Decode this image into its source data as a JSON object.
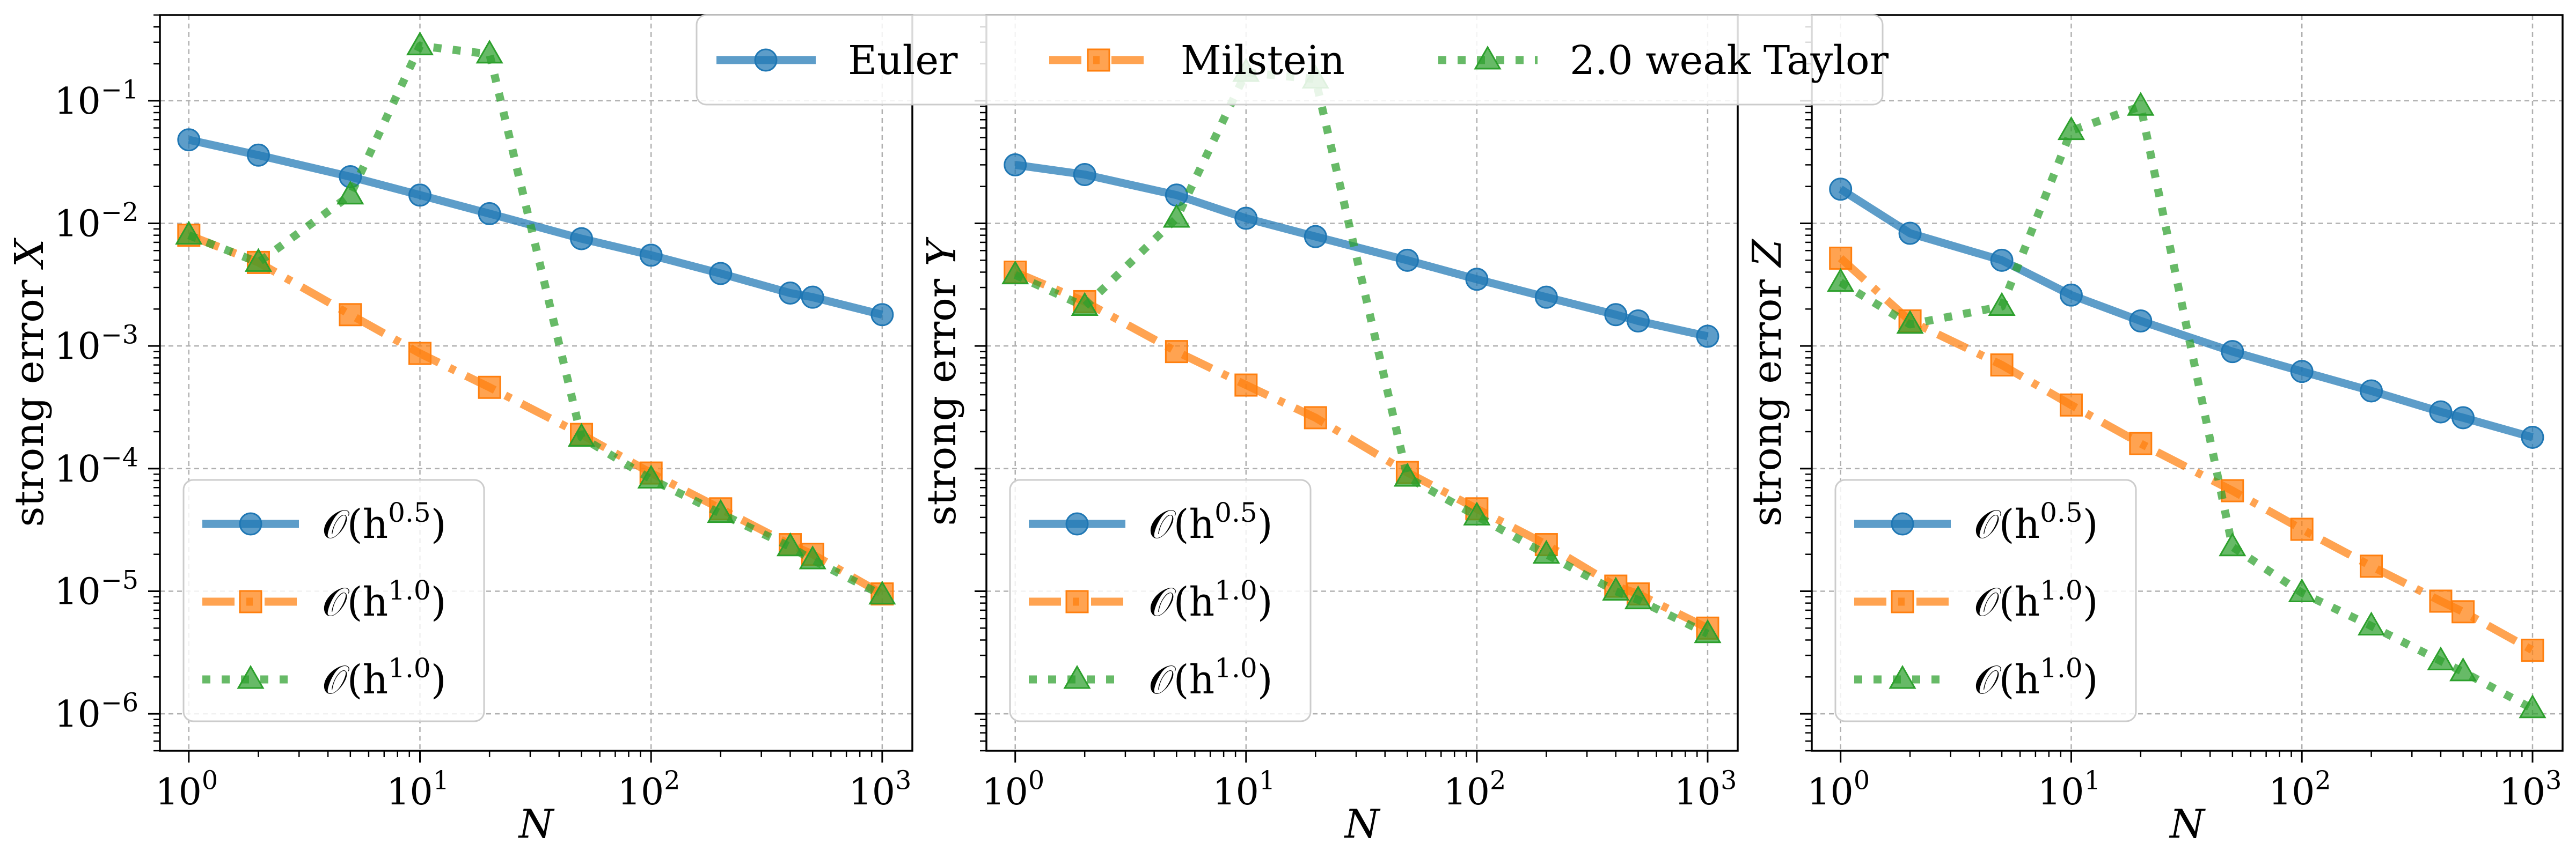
{
  "figure": {
    "legend_top": [
      {
        "label": "Euler",
        "color": "#1f77b4",
        "marker": "circle",
        "dash": "solid"
      },
      {
        "label": "Milstein",
        "color": "#ff7f0e",
        "marker": "square",
        "dash": "dashdot"
      },
      {
        "label": "2.0 weak Taylor",
        "color": "#2ca02c",
        "marker": "triangle",
        "dash": "dotted"
      }
    ]
  },
  "chart_data": [
    {
      "type": "line",
      "xscale": "log",
      "yscale": "log",
      "xlabel": "N",
      "ylabel_text": "strong error ",
      "ylabel_var": "X",
      "xlim": [
        0.75,
        1350
      ],
      "ylim": [
        5e-07,
        0.5
      ],
      "grid": true,
      "show_yticklabels": true,
      "legend_position": "lower-left",
      "x": [
        1,
        2,
        5,
        10,
        20,
        50,
        100,
        200,
        400,
        500,
        1000
      ],
      "x_ticks": [
        {
          "base": "10",
          "exp": "0"
        },
        {
          "base": "10",
          "exp": "1"
        },
        {
          "base": "10",
          "exp": "2"
        },
        {
          "base": "10",
          "exp": "3"
        }
      ],
      "y_ticks": [
        {
          "base": "10",
          "exp": "−1"
        },
        {
          "base": "10",
          "exp": "−2"
        },
        {
          "base": "10",
          "exp": "−3"
        },
        {
          "base": "10",
          "exp": "−4"
        },
        {
          "base": "10",
          "exp": "−5"
        },
        {
          "base": "10",
          "exp": "−6"
        }
      ],
      "series": [
        {
          "values": [
            0.048,
            0.036,
            0.024,
            0.017,
            0.012,
            0.0075,
            0.0055,
            0.0039,
            0.0027,
            0.0025,
            0.0018
          ],
          "legend": {
            "pre": "𝒪(h",
            "sup": "0.5",
            "post": ")"
          }
        },
        {
          "values": [
            0.008,
            0.0048,
            0.0018,
            0.00087,
            0.00046,
            0.00019,
            9.2e-05,
            4.7e-05,
            2.4e-05,
            2e-05,
            9.5e-06
          ],
          "legend": {
            "pre": "𝒪(h",
            "sup": "1.0",
            "post": ")"
          }
        },
        {
          "values": [
            0.008,
            0.0048,
            0.017,
            0.28,
            0.24,
            0.00018,
            8.2e-05,
            4.3e-05,
            2.3e-05,
            1.8e-05,
            9.3e-06
          ],
          "legend": {
            "pre": "𝒪(h",
            "sup": "1.0",
            "post": ")"
          }
        }
      ]
    },
    {
      "type": "line",
      "xscale": "log",
      "yscale": "log",
      "xlabel": "N",
      "ylabel_text": "strong error ",
      "ylabel_var": "Y",
      "xlim": [
        0.75,
        1350
      ],
      "ylim": [
        5e-07,
        0.5
      ],
      "grid": true,
      "show_yticklabels": false,
      "legend_position": "lower-left",
      "x": [
        1,
        2,
        5,
        10,
        20,
        50,
        100,
        200,
        400,
        500,
        1000
      ],
      "x_ticks": [
        {
          "base": "10",
          "exp": "0"
        },
        {
          "base": "10",
          "exp": "1"
        },
        {
          "base": "10",
          "exp": "2"
        },
        {
          "base": "10",
          "exp": "3"
        }
      ],
      "y_ticks": [],
      "series": [
        {
          "values": [
            0.03,
            0.025,
            0.017,
            0.011,
            0.0078,
            0.005,
            0.0035,
            0.0025,
            0.0018,
            0.0016,
            0.0012
          ],
          "legend": {
            "pre": "𝒪(h",
            "sup": "0.5",
            "post": ")"
          }
        },
        {
          "values": [
            0.004,
            0.0023,
            0.0009,
            0.00048,
            0.00026,
            9.3e-05,
            4.7e-05,
            2.4e-05,
            1.1e-05,
            9.5e-06,
            5e-06
          ],
          "legend": {
            "pre": "𝒪(h",
            "sup": "1.0",
            "post": ")"
          }
        },
        {
          "values": [
            0.0038,
            0.0021,
            0.011,
            0.17,
            0.15,
            8.5e-05,
            4.1e-05,
            2e-05,
            1e-05,
            8.5e-06,
            4.5e-06
          ],
          "legend": {
            "pre": "𝒪(h",
            "sup": "1.0",
            "post": ")"
          }
        }
      ]
    },
    {
      "type": "line",
      "xscale": "log",
      "yscale": "log",
      "xlabel": "N",
      "ylabel_text": "strong error ",
      "ylabel_var": "Z",
      "xlim": [
        0.75,
        1350
      ],
      "ylim": [
        5e-07,
        0.5
      ],
      "grid": true,
      "show_yticklabels": false,
      "legend_position": "lower-left",
      "x": [
        1,
        2,
        5,
        10,
        20,
        50,
        100,
        200,
        400,
        500,
        1000
      ],
      "x_ticks": [
        {
          "base": "10",
          "exp": "0"
        },
        {
          "base": "10",
          "exp": "1"
        },
        {
          "base": "10",
          "exp": "2"
        },
        {
          "base": "10",
          "exp": "3"
        }
      ],
      "y_ticks": [],
      "series": [
        {
          "values": [
            0.019,
            0.0083,
            0.005,
            0.0026,
            0.0016,
            0.0009,
            0.00062,
            0.00043,
            0.00029,
            0.00026,
            0.00018
          ],
          "legend": {
            "pre": "𝒪(h",
            "sup": "0.5",
            "post": ")"
          }
        },
        {
          "values": [
            0.0052,
            0.0016,
            0.0007,
            0.00033,
            0.00016,
            6.6e-05,
            3.2e-05,
            1.6e-05,
            8.3e-06,
            6.8e-06,
            3.3e-06
          ],
          "legend": {
            "pre": "𝒪(h",
            "sup": "1.0",
            "post": ")"
          }
        },
        {
          "values": [
            0.0033,
            0.0015,
            0.0021,
            0.057,
            0.09,
            2.3e-05,
            9.7e-06,
            5.2e-06,
            2.7e-06,
            2.2e-06,
            1.1e-06
          ],
          "legend": {
            "pre": "𝒪(h",
            "sup": "1.0",
            "post": ")"
          }
        }
      ]
    }
  ]
}
